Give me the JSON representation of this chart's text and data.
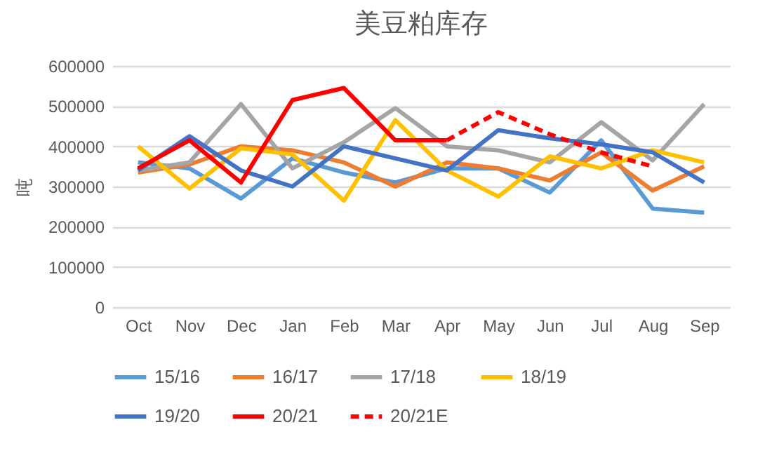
{
  "chart_data": {
    "type": "line",
    "title": "美豆粕库存",
    "ylabel": "吨",
    "categories": [
      "Oct",
      "Nov",
      "Dec",
      "Jan",
      "Feb",
      "Mar",
      "Apr",
      "May",
      "Jun",
      "Jul",
      "Aug",
      "Sep"
    ],
    "ylim": [
      0,
      600000
    ],
    "yticks": [
      0,
      100000,
      200000,
      300000,
      400000,
      500000,
      600000
    ],
    "grid": "y",
    "legend": "bottom",
    "marker": "none",
    "series": [
      {
        "name": "15/16",
        "color": "#5b9bd5",
        "line_style": "solid",
        "values": [
          360000,
          345000,
          270000,
          370000,
          335000,
          310000,
          345000,
          345000,
          285000,
          415000,
          245000,
          235000
        ]
      },
      {
        "name": "16/17",
        "color": "#ed7d31",
        "line_style": "solid",
        "values": [
          335000,
          355000,
          400000,
          390000,
          360000,
          300000,
          360000,
          345000,
          315000,
          385000,
          290000,
          350000
        ]
      },
      {
        "name": "17/18",
        "color": "#a5a5a5",
        "line_style": "solid",
        "values": [
          340000,
          360000,
          505000,
          345000,
          410000,
          495000,
          400000,
          390000,
          360000,
          460000,
          365000,
          505000
        ]
      },
      {
        "name": "18/19",
        "color": "#ffc000",
        "line_style": "solid",
        "values": [
          400000,
          295000,
          395000,
          380000,
          265000,
          465000,
          340000,
          275000,
          375000,
          345000,
          390000,
          360000
        ]
      },
      {
        "name": "19/20",
        "color": "#4472c4",
        "line_style": "solid",
        "values": [
          340000,
          425000,
          340000,
          300000,
          400000,
          370000,
          340000,
          440000,
          420000,
          405000,
          385000,
          310000
        ]
      },
      {
        "name": "20/21",
        "color": "#ff0000",
        "line_style": "solid",
        "values": [
          345000,
          415000,
          310000,
          515000,
          545000,
          415000,
          415000,
          null,
          null,
          null,
          null,
          null
        ]
      },
      {
        "name": "20/21E",
        "color": "#ff0000",
        "line_style": "dashed",
        "values": [
          null,
          null,
          null,
          null,
          null,
          null,
          415000,
          485000,
          430000,
          385000,
          350000,
          null
        ]
      }
    ]
  }
}
